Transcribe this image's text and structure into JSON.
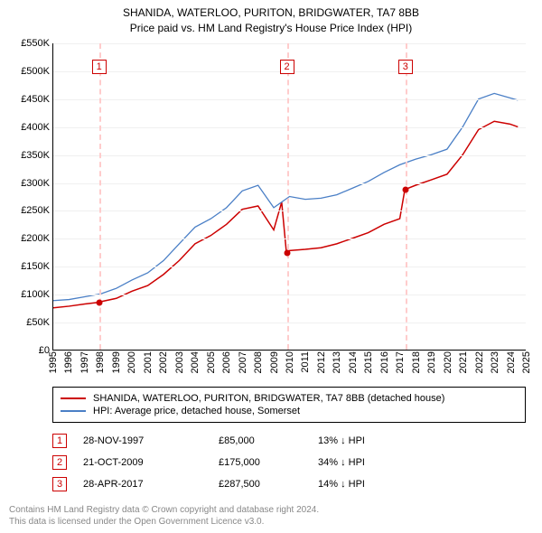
{
  "title_line1": "SHANIDA, WATERLOO, PURITON, BRIDGWATER, TA7 8BB",
  "title_line2": "Price paid vs. HM Land Registry's House Price Index (HPI)",
  "chart": {
    "type": "line",
    "x_min": 1995,
    "x_max": 2025,
    "y_min": 0,
    "y_max": 550000,
    "y_tick_step": 50000,
    "y_tick_labels": [
      "£0",
      "£50K",
      "£100K",
      "£150K",
      "£200K",
      "£250K",
      "£300K",
      "£350K",
      "£400K",
      "£450K",
      "£500K",
      "£550K"
    ],
    "x_ticks": [
      1995,
      1996,
      1997,
      1998,
      1999,
      2000,
      2001,
      2002,
      2003,
      2004,
      2005,
      2006,
      2007,
      2008,
      2009,
      2010,
      2011,
      2012,
      2013,
      2014,
      2015,
      2016,
      2017,
      2018,
      2019,
      2020,
      2021,
      2022,
      2023,
      2024,
      2025
    ],
    "grid_color": "#f0f0f0",
    "background_color": "#ffffff",
    "series": [
      {
        "name": "price_paid",
        "label": "SHANIDA, WATERLOO, PURITON, BRIDGWATER, TA7 8BB (detached house)",
        "color": "#cc0000",
        "line_width": 1.5,
        "points": [
          [
            1995,
            75000
          ],
          [
            1996,
            78000
          ],
          [
            1997,
            82000
          ],
          [
            1997.9,
            85000
          ],
          [
            1998,
            86000
          ],
          [
            1999,
            92000
          ],
          [
            2000,
            105000
          ],
          [
            2001,
            115000
          ],
          [
            2002,
            135000
          ],
          [
            2003,
            160000
          ],
          [
            2004,
            190000
          ],
          [
            2005,
            205000
          ],
          [
            2006,
            225000
          ],
          [
            2007,
            252000
          ],
          [
            2008,
            258000
          ],
          [
            2009,
            215000
          ],
          [
            2009.5,
            265000
          ],
          [
            2009.8,
            175000
          ],
          [
            2010,
            178000
          ],
          [
            2011,
            180000
          ],
          [
            2012,
            183000
          ],
          [
            2013,
            190000
          ],
          [
            2014,
            200000
          ],
          [
            2015,
            210000
          ],
          [
            2016,
            225000
          ],
          [
            2017,
            235000
          ],
          [
            2017.32,
            287500
          ],
          [
            2018,
            295000
          ],
          [
            2019,
            305000
          ],
          [
            2020,
            315000
          ],
          [
            2021,
            350000
          ],
          [
            2022,
            395000
          ],
          [
            2023,
            410000
          ],
          [
            2024,
            405000
          ],
          [
            2024.5,
            400000
          ]
        ]
      },
      {
        "name": "hpi",
        "label": "HPI: Average price, detached house, Somerset",
        "color": "#4a7fc6",
        "line_width": 1.3,
        "points": [
          [
            1995,
            88000
          ],
          [
            1996,
            90000
          ],
          [
            1997,
            95000
          ],
          [
            1998,
            100000
          ],
          [
            1999,
            110000
          ],
          [
            2000,
            125000
          ],
          [
            2001,
            138000
          ],
          [
            2002,
            160000
          ],
          [
            2003,
            190000
          ],
          [
            2004,
            220000
          ],
          [
            2005,
            235000
          ],
          [
            2006,
            255000
          ],
          [
            2007,
            285000
          ],
          [
            2008,
            295000
          ],
          [
            2009,
            255000
          ],
          [
            2010,
            275000
          ],
          [
            2011,
            270000
          ],
          [
            2012,
            272000
          ],
          [
            2013,
            278000
          ],
          [
            2014,
            290000
          ],
          [
            2015,
            302000
          ],
          [
            2016,
            318000
          ],
          [
            2017,
            332000
          ],
          [
            2018,
            342000
          ],
          [
            2019,
            350000
          ],
          [
            2020,
            360000
          ],
          [
            2021,
            400000
          ],
          [
            2022,
            450000
          ],
          [
            2023,
            460000
          ],
          [
            2024,
            452000
          ],
          [
            2024.5,
            448000
          ]
        ]
      }
    ],
    "event_line_color": "#ffcccc",
    "event_marker_border": "#cc0000",
    "events": [
      {
        "n": "1",
        "year": 1997.9,
        "y_marker_top": 18
      },
      {
        "n": "2",
        "year": 2009.8,
        "y_marker_top": 18
      },
      {
        "n": "3",
        "year": 2017.32,
        "y_marker_top": 18
      }
    ],
    "price_dots": [
      {
        "year": 1997.9,
        "price": 85000,
        "color": "#cc0000"
      },
      {
        "year": 2009.8,
        "price": 175000,
        "color": "#cc0000"
      },
      {
        "year": 2017.32,
        "price": 287500,
        "color": "#cc0000"
      }
    ]
  },
  "legend": {
    "items": [
      {
        "color": "#cc0000",
        "label": "SHANIDA, WATERLOO, PURITON, BRIDGWATER, TA7 8BB (detached house)"
      },
      {
        "color": "#4a7fc6",
        "label": "HPI: Average price, detached house, Somerset"
      }
    ]
  },
  "events_table": {
    "marker_border": "#cc0000",
    "rows": [
      {
        "n": "1",
        "date": "28-NOV-1997",
        "price": "£85,000",
        "pct": "13% ↓ HPI"
      },
      {
        "n": "2",
        "date": "21-OCT-2009",
        "price": "£175,000",
        "pct": "34% ↓ HPI"
      },
      {
        "n": "3",
        "date": "28-APR-2017",
        "price": "£287,500",
        "pct": "14% ↓ HPI"
      }
    ]
  },
  "attribution": {
    "line1": "Contains HM Land Registry data © Crown copyright and database right 2024.",
    "line2": "This data is licensed under the Open Government Licence v3.0."
  }
}
